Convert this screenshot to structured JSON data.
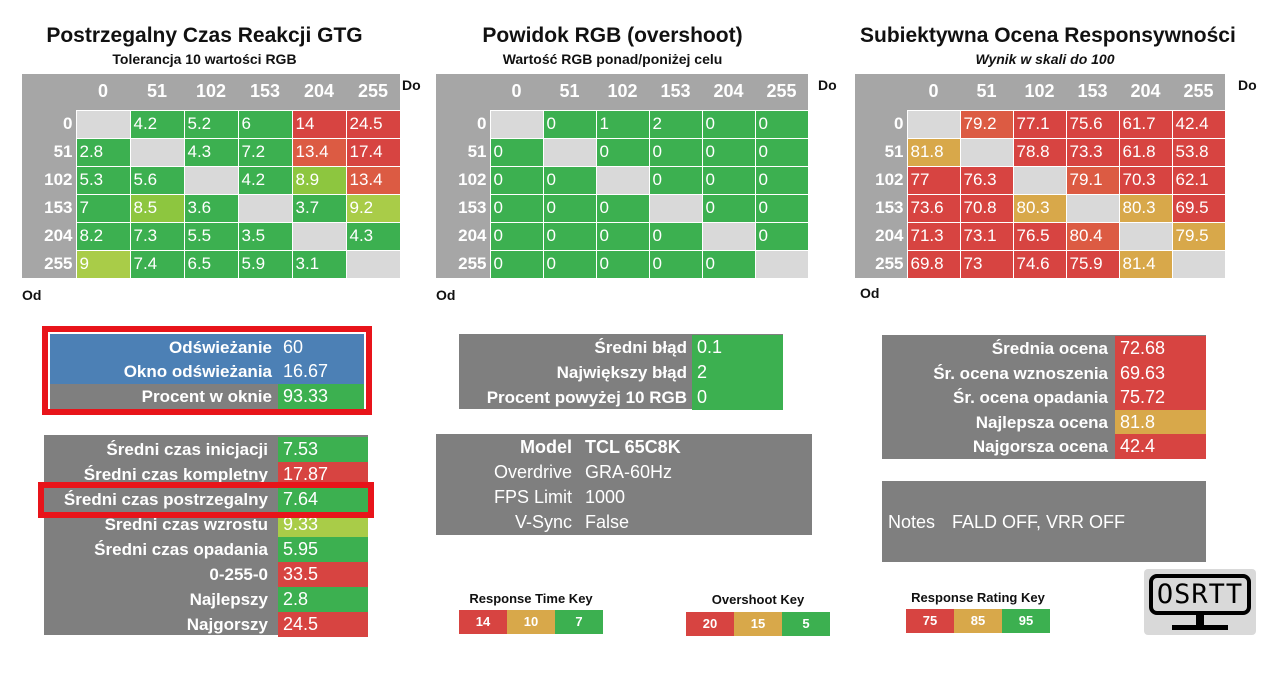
{
  "colors": {
    "green": "#3cb050",
    "lightgreen": "#a9cc48",
    "yellowgreen": "#8dc63f",
    "orange": "#d8a84a",
    "red": "#d74441",
    "redorange": "#dc5b43",
    "gray": "#7f7f7f",
    "headergray": "#a6a6a6",
    "blue": "#4c80b5",
    "diag": "#d9d9d9"
  },
  "chart_data": [
    {
      "type": "heatmap",
      "title": "Postrzegalny Czas Reakcji GTG",
      "subtitle": "Tolerancja 10 wartości RGB",
      "xlabel": "Do",
      "ylabel": "Od",
      "columns": [
        "0",
        "51",
        "102",
        "153",
        "204",
        "255"
      ],
      "rows": [
        "0",
        "51",
        "102",
        "153",
        "204",
        "255"
      ],
      "values": [
        [
          null,
          "4.2",
          "5.2",
          "6",
          "14",
          "24.5"
        ],
        [
          "2.8",
          null,
          "4.3",
          "7.2",
          "13.4",
          "17.4"
        ],
        [
          "5.3",
          "5.6",
          null,
          "4.2",
          "8.9",
          "13.4"
        ],
        [
          "7",
          "8.5",
          "3.6",
          null,
          "3.7",
          "9.2"
        ],
        [
          "8.2",
          "7.3",
          "5.5",
          "3.5",
          null,
          "4.3"
        ],
        [
          "9",
          "7.4",
          "6.5",
          "5.9",
          "3.1",
          null
        ]
      ],
      "cell_colors": [
        [
          null,
          "green",
          "green",
          "green",
          "red",
          "red"
        ],
        [
          "green",
          null,
          "green",
          "green",
          "redorange",
          "red"
        ],
        [
          "green",
          "green",
          null,
          "green",
          "yellowgreen",
          "redorange"
        ],
        [
          "green",
          "yellowgreen",
          "green",
          null,
          "green",
          "lightgreen"
        ],
        [
          "green",
          "green",
          "green",
          "green",
          null,
          "green"
        ],
        [
          "lightgreen",
          "green",
          "green",
          "green",
          "green",
          null
        ]
      ]
    },
    {
      "type": "heatmap",
      "title": "Powidok RGB (overshoot)",
      "subtitle": "Wartość RGB ponad/poniżej celu",
      "xlabel": "Do",
      "ylabel": "Od",
      "columns": [
        "0",
        "51",
        "102",
        "153",
        "204",
        "255"
      ],
      "rows": [
        "0",
        "51",
        "102",
        "153",
        "204",
        "255"
      ],
      "values": [
        [
          null,
          "0",
          "1",
          "2",
          "0",
          "0"
        ],
        [
          "0",
          null,
          "0",
          "0",
          "0",
          "0"
        ],
        [
          "0",
          "0",
          null,
          "0",
          "0",
          "0"
        ],
        [
          "0",
          "0",
          "0",
          null,
          "0",
          "0"
        ],
        [
          "0",
          "0",
          "0",
          "0",
          null,
          "0"
        ],
        [
          "0",
          "0",
          "0",
          "0",
          "0",
          null
        ]
      ],
      "cell_colors": [
        [
          null,
          "green",
          "green",
          "green",
          "green",
          "green"
        ],
        [
          "green",
          null,
          "green",
          "green",
          "green",
          "green"
        ],
        [
          "green",
          "green",
          null,
          "green",
          "green",
          "green"
        ],
        [
          "green",
          "green",
          "green",
          null,
          "green",
          "green"
        ],
        [
          "green",
          "green",
          "green",
          "green",
          null,
          "green"
        ],
        [
          "green",
          "green",
          "green",
          "green",
          "green",
          null
        ]
      ]
    },
    {
      "type": "heatmap",
      "title": "Subiektywna Ocena Responsywności",
      "subtitle": "Wynik w skali do 100",
      "xlabel": "Do",
      "ylabel": "Od",
      "columns": [
        "0",
        "51",
        "102",
        "153",
        "204",
        "255"
      ],
      "rows": [
        "0",
        "51",
        "102",
        "153",
        "204",
        "255"
      ],
      "values": [
        [
          null,
          "79.2",
          "77.1",
          "75.6",
          "61.7",
          "42.4"
        ],
        [
          "81.8",
          null,
          "78.8",
          "73.3",
          "61.8",
          "53.8"
        ],
        [
          "77",
          "76.3",
          null,
          "79.1",
          "70.3",
          "62.1"
        ],
        [
          "73.6",
          "70.8",
          "80.3",
          null,
          "80.3",
          "69.5"
        ],
        [
          "71.3",
          "73.1",
          "76.5",
          "80.4",
          null,
          "79.5"
        ],
        [
          "69.8",
          "73",
          "74.6",
          "75.9",
          "81.4",
          null
        ]
      ],
      "cell_colors": [
        [
          null,
          "redorange",
          "red",
          "red",
          "red",
          "red"
        ],
        [
          "orange",
          null,
          "red",
          "red",
          "red",
          "red"
        ],
        [
          "red",
          "red",
          null,
          "redorange",
          "red",
          "red"
        ],
        [
          "red",
          "red",
          "orange",
          null,
          "orange",
          "red"
        ],
        [
          "red",
          "red",
          "red",
          "redorange",
          null,
          "orange"
        ],
        [
          "red",
          "red",
          "red",
          "red",
          "orange",
          null
        ]
      ]
    }
  ],
  "refresh_panel": {
    "rows": [
      {
        "label": "Odświeżanie",
        "value": "60"
      },
      {
        "label": "Okno odświeżania",
        "value": "16.67"
      },
      {
        "label": "Procent w oknie",
        "value": "93.33"
      }
    ]
  },
  "times_panel": {
    "rows": [
      {
        "label": "Średni czas inicjacji",
        "value": "7.53",
        "color": "green"
      },
      {
        "label": "Średni czas kompletny",
        "value": "17.87",
        "color": "red"
      },
      {
        "label": "Średni czas postrzegalny",
        "value": "7.64",
        "color": "green"
      },
      {
        "label": "Średni czas wzrostu",
        "value": "9.33",
        "color": "lightgreen"
      },
      {
        "label": "Średni czas opadania",
        "value": "5.95",
        "color": "green"
      },
      {
        "label": "0-255-0",
        "value": "33.5",
        "color": "red"
      },
      {
        "label": "Najlepszy",
        "value": "2.8",
        "color": "green"
      },
      {
        "label": "Najgorszy",
        "value": "24.5",
        "color": "red"
      }
    ]
  },
  "error_panel": {
    "rows": [
      {
        "label": "Średni błąd",
        "value": "0.1"
      },
      {
        "label": "Największy błąd",
        "value": "2"
      },
      {
        "label": "Procent powyżej 10 RGB",
        "value": "0"
      }
    ]
  },
  "info_panel": {
    "rows": [
      {
        "label": "Model",
        "value": "TCL 65C8K",
        "bold": true
      },
      {
        "label": "Overdrive",
        "value": "GRA-60Hz"
      },
      {
        "label": "FPS Limit",
        "value": "1000"
      },
      {
        "label": "V-Sync",
        "value": "False"
      }
    ]
  },
  "rating_panel": {
    "rows": [
      {
        "label": "Średnia ocena",
        "value": "72.68",
        "color": "red"
      },
      {
        "label": "Śr. ocena wznoszenia",
        "value": "69.63",
        "color": "red"
      },
      {
        "label": "Śr. ocena opadania",
        "value": "75.72",
        "color": "red"
      },
      {
        "label": "Najlepsza ocena",
        "value": "81.8",
        "color": "orange"
      },
      {
        "label": "Najgorsza ocena",
        "value": "42.4",
        "color": "red"
      }
    ]
  },
  "notes": {
    "label": "Notes",
    "value": "FALD OFF, VRR OFF"
  },
  "keys": [
    {
      "title": "Response Time Key",
      "boxes": [
        {
          "text": "14",
          "color": "red"
        },
        {
          "text": "10",
          "color": "orange"
        },
        {
          "text": "7",
          "color": "green"
        }
      ]
    },
    {
      "title": "Overshoot Key",
      "boxes": [
        {
          "text": "20",
          "color": "red"
        },
        {
          "text": "15",
          "color": "orange"
        },
        {
          "text": "5",
          "color": "green"
        }
      ]
    },
    {
      "title": "Response Rating Key",
      "boxes": [
        {
          "text": "75",
          "color": "red"
        },
        {
          "text": "85",
          "color": "orange"
        },
        {
          "text": "95",
          "color": "green"
        }
      ]
    }
  ],
  "logo": {
    "text": "OSRTT"
  }
}
